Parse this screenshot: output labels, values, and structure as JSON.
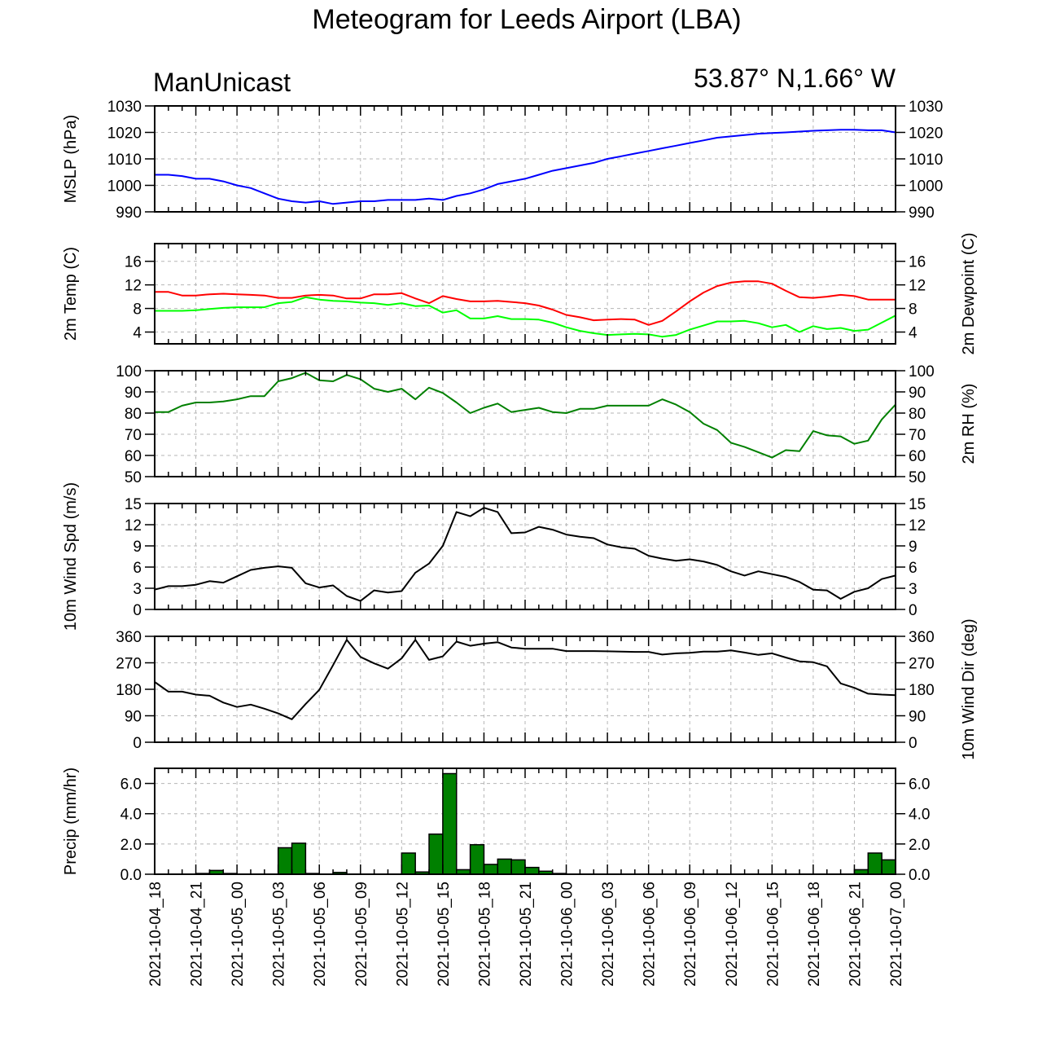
{
  "title": "Meteogram for Leeds Airport (LBA)",
  "source_label": "ManUnicast",
  "location_label": "53.87° N,1.66° W",
  "time_labels": [
    "2021-10-04_18",
    "2021-10-04_21",
    "2021-10-05_00",
    "2021-10-05_03",
    "2021-10-05_06",
    "2021-10-05_09",
    "2021-10-05_12",
    "2021-10-05_15",
    "2021-10-05_18",
    "2021-10-05_21",
    "2021-10-06_00",
    "2021-10-06_03",
    "2021-10-06_06",
    "2021-10-06_09",
    "2021-10-06_12",
    "2021-10-06_15",
    "2021-10-06_18",
    "2021-10-06_21",
    "2021-10-07_00"
  ],
  "chart_data": [
    {
      "type": "line",
      "ylabel": "MSLP (hPa)",
      "ylim": [
        990,
        1030
      ],
      "yticks": [
        990,
        1000,
        1010,
        1020,
        1030
      ],
      "x_hours": [
        0,
        1,
        2,
        3,
        4,
        5,
        6,
        7,
        8,
        9,
        10,
        11,
        12,
        13,
        14,
        15,
        16,
        17,
        18,
        19,
        20,
        21,
        22,
        23,
        24,
        25,
        26,
        27,
        28,
        29,
        30,
        31,
        32,
        33,
        34,
        35,
        36,
        37,
        38,
        39,
        40,
        41,
        42,
        43,
        44,
        45,
        46,
        47,
        48,
        49,
        50,
        51,
        52,
        53,
        54
      ],
      "series": [
        {
          "color": "#0000ff",
          "values": [
            1004,
            1004,
            1003.5,
            1002.5,
            1002.5,
            1001.5,
            1000,
            999,
            997,
            995,
            994,
            993.5,
            994,
            993,
            993.5,
            994,
            994,
            994.5,
            994.5,
            994.5,
            995,
            994.5,
            996,
            997,
            998.5,
            1000.5,
            1001.5,
            1002.5,
            1004,
            1005.5,
            1006.5,
            1007.5,
            1008.5,
            1010,
            1011,
            1012,
            1013,
            1014,
            1015,
            1016,
            1017,
            1018,
            1018.5,
            1019,
            1019.5,
            1019.8,
            1020,
            1020.3,
            1020.6,
            1020.8,
            1021,
            1021,
            1020.8,
            1020.8,
            1020
          ]
        }
      ]
    },
    {
      "type": "line",
      "ylabel": "2m Temp (C)",
      "ylabel_right": "2m Dewpoint (C)",
      "ylim": [
        2,
        19
      ],
      "yticks": [
        4,
        8,
        12,
        16
      ],
      "x_hours": [
        0,
        1,
        2,
        3,
        4,
        5,
        6,
        7,
        8,
        9,
        10,
        11,
        12,
        13,
        14,
        15,
        16,
        17,
        18,
        19,
        20,
        21,
        22,
        23,
        24,
        25,
        26,
        27,
        28,
        29,
        30,
        31,
        32,
        33,
        34,
        35,
        36,
        37,
        38,
        39,
        40,
        41,
        42,
        43,
        44,
        45,
        46,
        47,
        48,
        49,
        50,
        51,
        52,
        53,
        54
      ],
      "series": [
        {
          "color": "#ff0000",
          "values": [
            10.8,
            10.8,
            10.2,
            10.2,
            10.4,
            10.5,
            10.4,
            10.3,
            10.2,
            9.8,
            9.8,
            10.2,
            10.3,
            10.2,
            9.7,
            9.7,
            10.4,
            10.4,
            10.6,
            9.7,
            8.9,
            10.1,
            9.6,
            9.2,
            9.2,
            9.3,
            9.1,
            8.9,
            8.5,
            7.8,
            6.9,
            6.5,
            6.0,
            6.1,
            6.2,
            6.1,
            5.2,
            5.9,
            7.5,
            9.2,
            10.7,
            11.8,
            12.4,
            12.6,
            12.6,
            12.2,
            11.0,
            9.9,
            9.8,
            10.0,
            10.3,
            10.1,
            9.5,
            9.5,
            9.5
          ]
        },
        {
          "color": "#00ff00",
          "values": [
            7.6,
            7.6,
            7.6,
            7.7,
            7.9,
            8.1,
            8.2,
            8.2,
            8.2,
            8.9,
            9.1,
            9.9,
            9.5,
            9.3,
            9.2,
            9.0,
            8.9,
            8.6,
            8.9,
            8.4,
            8.5,
            7.3,
            7.7,
            6.3,
            6.3,
            6.7,
            6.2,
            6.2,
            6.1,
            5.6,
            4.8,
            4.2,
            3.8,
            3.5,
            3.6,
            3.7,
            3.6,
            3.2,
            3.5,
            4.4,
            5.1,
            5.8,
            5.8,
            5.9,
            5.5,
            4.8,
            5.2,
            4.0,
            5.0,
            4.5,
            4.7,
            4.2,
            4.4,
            5.6,
            6.8
          ]
        }
      ]
    },
    {
      "type": "line",
      "ylabel": "",
      "ylabel_right": "2m RH (%)",
      "ylim": [
        50,
        100
      ],
      "yticks": [
        50,
        60,
        70,
        80,
        90,
        100
      ],
      "x_hours": [
        0,
        1,
        2,
        3,
        4,
        5,
        6,
        7,
        8,
        9,
        10,
        11,
        12,
        13,
        14,
        15,
        16,
        17,
        18,
        19,
        20,
        21,
        22,
        23,
        24,
        25,
        26,
        27,
        28,
        29,
        30,
        31,
        32,
        33,
        34,
        35,
        36,
        37,
        38,
        39,
        40,
        41,
        42,
        43,
        44,
        45,
        46,
        47,
        48,
        49,
        50,
        51,
        52,
        53,
        54
      ],
      "series": [
        {
          "color": "#008000",
          "values": [
            80.5,
            80.5,
            83.5,
            85,
            85,
            85.5,
            86.5,
            88,
            88,
            95,
            96.5,
            99,
            95.5,
            95,
            98,
            96,
            91.5,
            90,
            91.5,
            86.5,
            92,
            89.5,
            85,
            80,
            82.5,
            84.5,
            80.5,
            81.5,
            82.5,
            80.5,
            80,
            82,
            82,
            83.5,
            83.5,
            83.5,
            83.5,
            86.5,
            84,
            80.5,
            75,
            72,
            66,
            64,
            61.5,
            59,
            62.5,
            62,
            71.5,
            69.5,
            69,
            65.5,
            67,
            77,
            84
          ]
        }
      ]
    },
    {
      "type": "line",
      "ylabel": "10m Wind Spd (m/s)",
      "ylim": [
        0,
        15
      ],
      "yticks": [
        0,
        3,
        6,
        9,
        12,
        15
      ],
      "x_hours": [
        0,
        1,
        2,
        3,
        4,
        5,
        6,
        7,
        8,
        9,
        10,
        11,
        12,
        13,
        14,
        15,
        16,
        17,
        18,
        19,
        20,
        21,
        22,
        23,
        24,
        25,
        26,
        27,
        28,
        29,
        30,
        31,
        32,
        33,
        34,
        35,
        36,
        37,
        38,
        39,
        40,
        41,
        42,
        43,
        44,
        45,
        46,
        47,
        48,
        49,
        50,
        51,
        52,
        53,
        54
      ],
      "series": [
        {
          "color": "#000000",
          "values": [
            2.8,
            3.3,
            3.3,
            3.5,
            4.0,
            3.8,
            4.7,
            5.6,
            5.9,
            6.1,
            5.9,
            3.7,
            3.1,
            3.4,
            1.9,
            1.2,
            2.7,
            2.4,
            2.6,
            5.2,
            6.5,
            9.0,
            13.8,
            13.2,
            14.4,
            13.8,
            10.8,
            10.9,
            11.7,
            11.3,
            10.6,
            10.3,
            10.1,
            9.2,
            8.8,
            8.6,
            7.6,
            7.2,
            6.9,
            7.1,
            6.8,
            6.3,
            5.4,
            4.8,
            5.4,
            5.0,
            4.6,
            3.9,
            2.8,
            2.7,
            1.5,
            2.5,
            3.0,
            4.3,
            4.8
          ]
        }
      ]
    },
    {
      "type": "line",
      "ylabel": "",
      "ylabel_right": "10m Wind Dir (deg)",
      "ylim": [
        0,
        360
      ],
      "yticks": [
        0,
        90,
        180,
        270,
        360
      ],
      "x_hours": [
        0,
        1,
        2,
        3,
        4,
        5,
        6,
        7,
        8,
        9,
        10,
        11,
        12,
        13,
        14,
        15,
        16,
        17,
        18,
        19,
        20,
        21,
        22,
        23,
        24,
        25,
        26,
        27,
        28,
        29,
        30,
        31,
        32,
        33,
        34,
        35,
        36,
        37,
        38,
        39,
        40,
        41,
        42,
        43,
        44,
        45,
        46,
        47,
        48,
        49,
        50,
        51,
        52,
        53,
        54
      ],
      "series": [
        {
          "color": "#000000",
          "values": [
            205,
            172,
            172,
            162,
            158,
            135,
            120,
            128,
            114,
            98,
            78,
            130,
            178,
            262,
            348,
            290,
            268,
            250,
            285,
            348,
            280,
            292,
            342,
            328,
            335,
            340,
            322,
            318,
            318,
            318,
            310,
            310,
            310,
            309,
            308,
            307,
            307,
            298,
            302,
            304,
            308,
            308,
            312,
            305,
            297,
            302,
            288,
            275,
            272,
            258,
            200,
            185,
            165,
            162,
            160
          ]
        }
      ]
    },
    {
      "type": "bar",
      "ylabel": "Precip (mm/hr)",
      "ylim": [
        0,
        7
      ],
      "yticks": [
        0,
        2,
        4,
        6
      ],
      "ytick_labels": [
        "0.0",
        "2.0",
        "4.0",
        "6.0"
      ],
      "x_hours": [
        0,
        1,
        2,
        3,
        4,
        5,
        6,
        7,
        8,
        9,
        10,
        11,
        12,
        13,
        14,
        15,
        16,
        17,
        18,
        19,
        20,
        21,
        22,
        23,
        24,
        25,
        26,
        27,
        28,
        29,
        30,
        31,
        32,
        33,
        34,
        35,
        36,
        37,
        38,
        39,
        40,
        41,
        42,
        43,
        44,
        45,
        46,
        47,
        48,
        49,
        50,
        51,
        52,
        53
      ],
      "series": [
        {
          "color": "#008000",
          "values": [
            0,
            0,
            0,
            0.05,
            0.25,
            0.05,
            0,
            0,
            0,
            1.75,
            2.05,
            0.05,
            0,
            0.12,
            0,
            0,
            0,
            0,
            1.4,
            0.15,
            2.65,
            6.65,
            0.3,
            1.95,
            0.65,
            1.0,
            0.95,
            0.45,
            0.2,
            0.05,
            0,
            0,
            0,
            0,
            0,
            0,
            0,
            0,
            0,
            0,
            0,
            0,
            0,
            0,
            0,
            0,
            0,
            0,
            0,
            0,
            0,
            0.3,
            1.4,
            0.95
          ]
        }
      ]
    }
  ]
}
